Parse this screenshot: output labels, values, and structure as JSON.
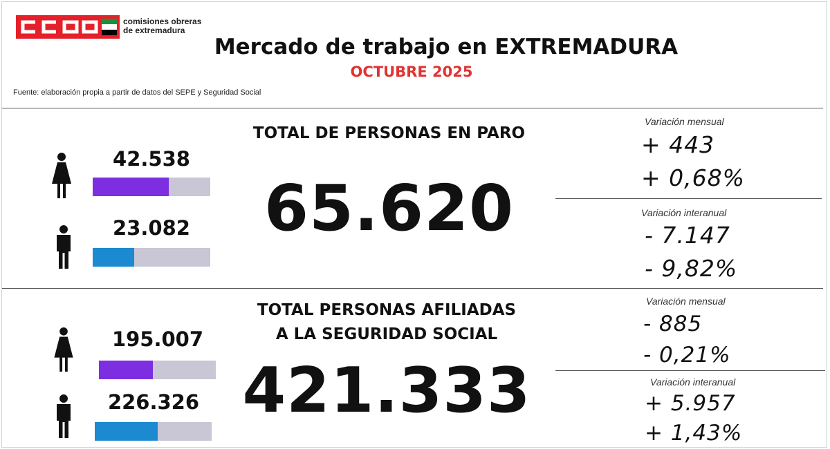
{
  "header": {
    "logo_text": "CCOO",
    "org_name_line1": "comisiones obreras",
    "org_name_line2": "de extremadura",
    "title": "Mercado de trabajo en EXTREMADURA",
    "subtitle": "OCTUBRE 2025",
    "source": "Fuente: elaboración propia a partir de datos del SEPE y Seguridad Social"
  },
  "colors": {
    "brand_red": "#e4202a",
    "subtitle_red": "#e03333",
    "women_bar": "#7d2ee0",
    "men_bar": "#1b8ad0",
    "bar_track": "#c9c6d6"
  },
  "paro": {
    "title": "TOTAL DE PERSONAS EN PARO",
    "total": "65.620",
    "women": {
      "icon": "woman-icon",
      "value": "42.538",
      "share": 0.648
    },
    "men": {
      "icon": "man-icon",
      "value": "23.082",
      "share": 0.352
    },
    "monthly": {
      "label": "Variación mensual",
      "abs": "+ 443",
      "pct": "+ 0,68%"
    },
    "yearly": {
      "label": "Variación interanual",
      "abs": "- 7.147",
      "pct": "- 9,82%"
    }
  },
  "afiliados": {
    "title_line1": "TOTAL PERSONAS AFILIADAS",
    "title_line2": "A LA SEGURIDAD SOCIAL",
    "total": "421.333",
    "women": {
      "icon": "woman-icon",
      "value": "195.007",
      "share": 0.463
    },
    "men": {
      "icon": "man-icon",
      "value": "226.326",
      "share": 0.537
    },
    "monthly": {
      "label": "Variación mensual",
      "abs": "- 885",
      "pct": "- 0,21%"
    },
    "yearly": {
      "label": "Variación interanual",
      "abs": "+ 5.957",
      "pct": "+ 1,43%"
    }
  }
}
